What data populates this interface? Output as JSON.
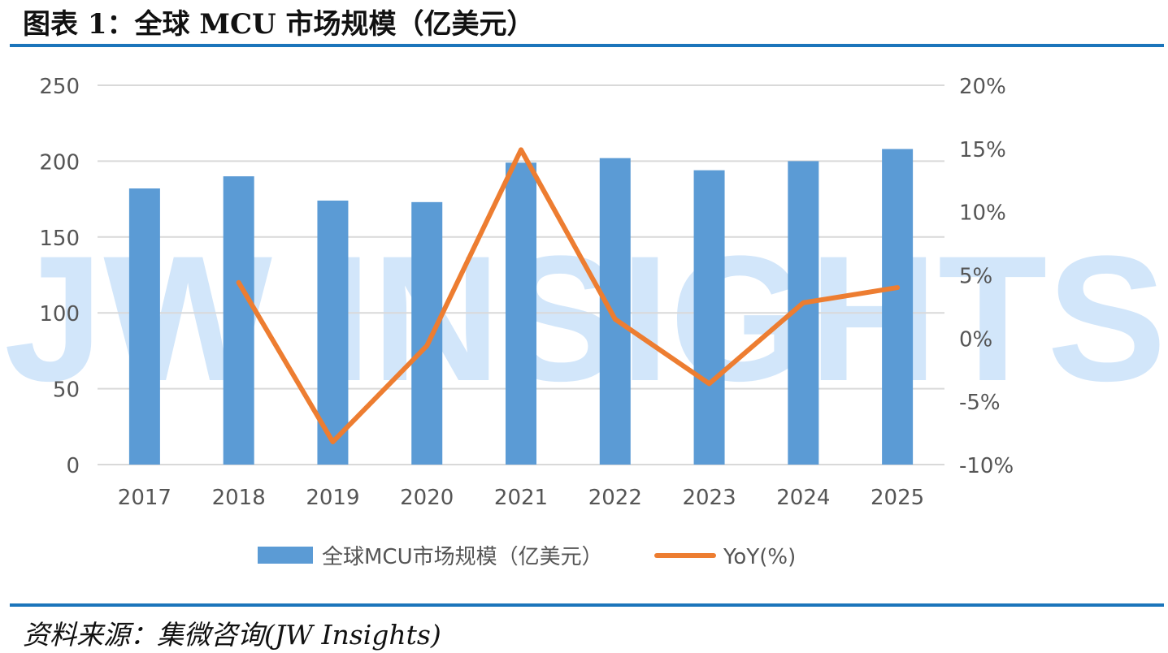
{
  "header": {
    "title": "图表 1：全球 MCU 市场规模（亿美元）"
  },
  "footer": {
    "source": "资料来源：集微咨询(JW Insights)"
  },
  "watermark": {
    "text": "JW INSIGHTS"
  },
  "colors": {
    "bar": "#5b9bd5",
    "line": "#ed7d31",
    "rule": "#1b75bb",
    "grid": "#d9d9d9"
  },
  "chart_data": {
    "type": "bar",
    "categories": [
      "2017",
      "2018",
      "2019",
      "2020",
      "2021",
      "2022",
      "2023",
      "2024",
      "2025"
    ],
    "series": [
      {
        "name": "全球MCU市场规模（亿美元）",
        "type": "bar",
        "axis": "left",
        "values": [
          182,
          190,
          174,
          173,
          199,
          202,
          194,
          200,
          208
        ]
      },
      {
        "name": "YoY(%)",
        "type": "line",
        "axis": "right",
        "values": [
          null,
          4.4,
          -8.2,
          -0.6,
          14.9,
          1.5,
          -3.6,
          2.8,
          4.0
        ]
      }
    ],
    "y_left": {
      "min": 0,
      "max": 250,
      "step": 50,
      "ticks": [
        "0",
        "50",
        "100",
        "150",
        "200",
        "250"
      ]
    },
    "y_right": {
      "min": -10,
      "max": 20,
      "step": 5,
      "ticks": [
        "-10%",
        "-5%",
        "0%",
        "5%",
        "10%",
        "15%",
        "20%"
      ]
    },
    "grid": true,
    "legend": "bottom"
  }
}
